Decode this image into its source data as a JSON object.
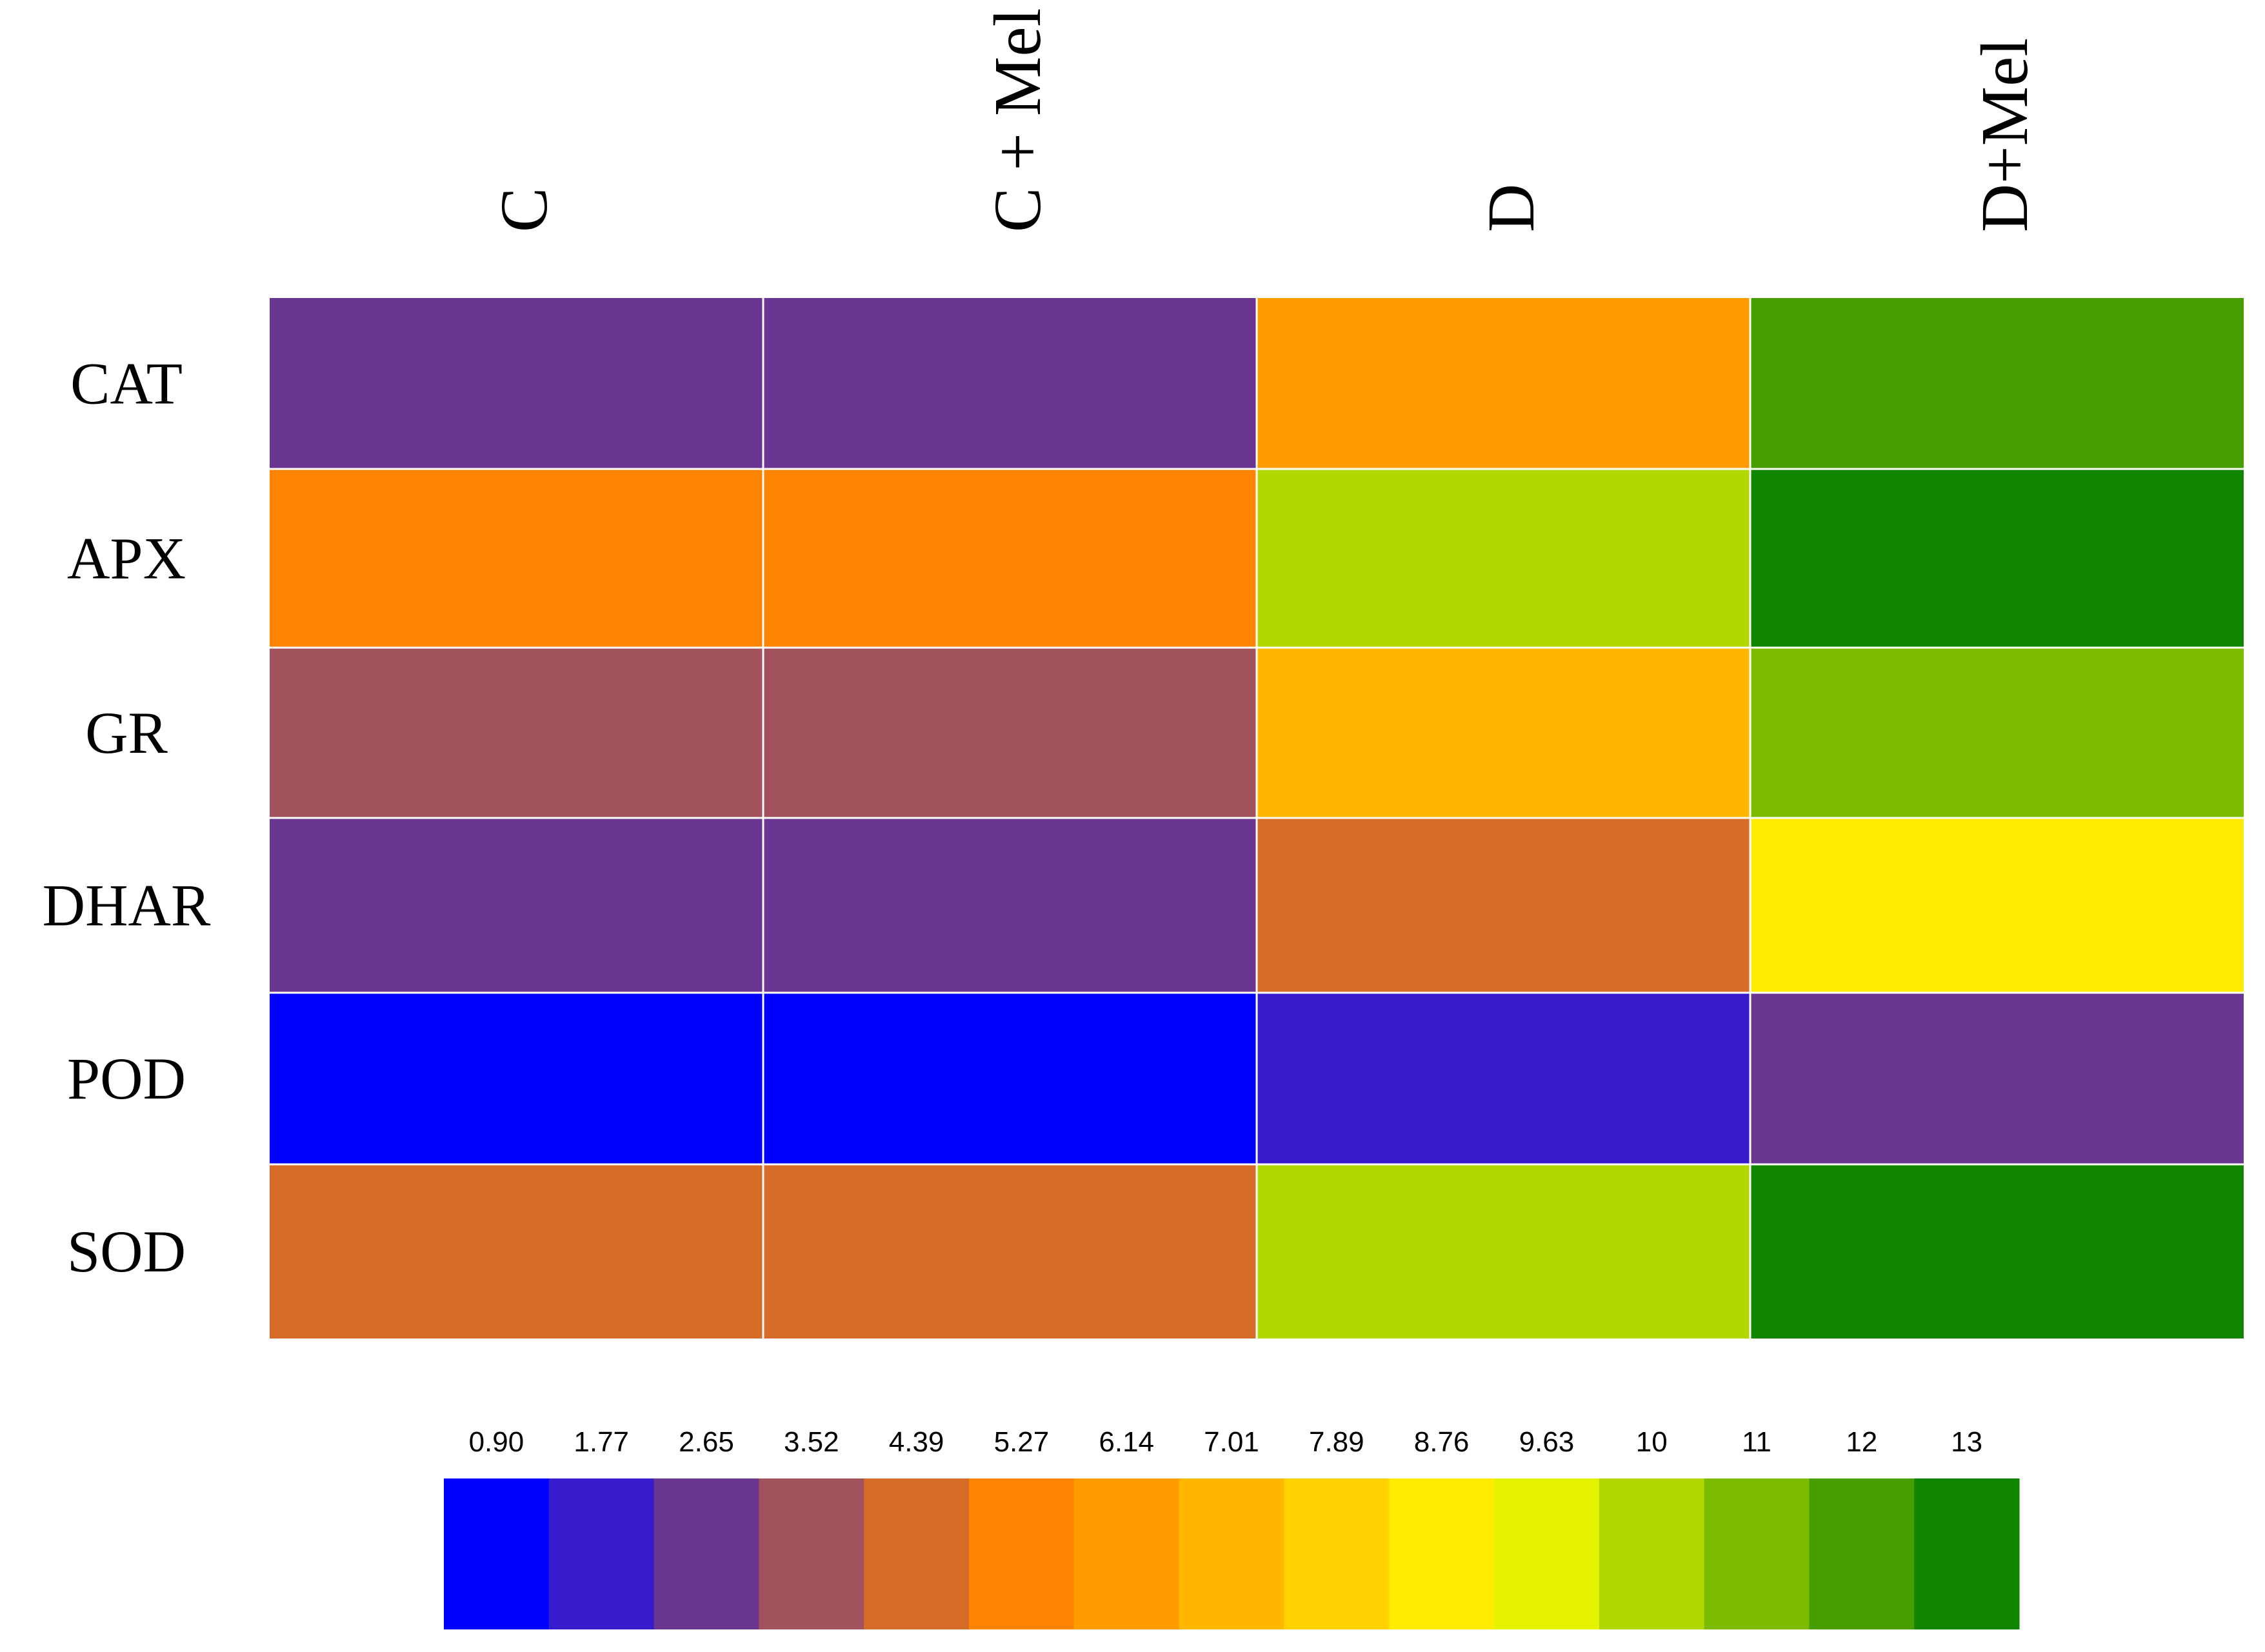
{
  "chart_data": {
    "type": "heatmap",
    "columns": [
      "C",
      "C + Mel",
      "D",
      "D+Mel"
    ],
    "rows": [
      "CAT",
      "APX",
      "GR",
      "DHAR",
      "POD",
      "SOD"
    ],
    "values": [
      [
        2.65,
        2.65,
        6.14,
        12
      ],
      [
        5.27,
        5.27,
        10,
        13
      ],
      [
        3.52,
        3.52,
        7.01,
        11
      ],
      [
        2.65,
        2.65,
        4.39,
        8.76
      ],
      [
        0.9,
        0.9,
        1.77,
        2.65
      ],
      [
        4.39,
        4.39,
        10,
        13
      ]
    ],
    "legend": {
      "ticks": [
        "0.90",
        "1.77",
        "2.65",
        "3.52",
        "4.39",
        "5.27",
        "6.14",
        "7.01",
        "7.89",
        "8.76",
        "9.63",
        "10",
        "11",
        "12",
        "13"
      ],
      "colors": [
        "#0000ff",
        "#361ccc",
        "#6b3592",
        "#a1525c",
        "#d76c28",
        "#ff8402",
        "#ff9c00",
        "#ffb700",
        "#ffd200",
        "#ffec00",
        "#e5f300",
        "#b1d800",
        "#7cbb00",
        "#479e00",
        "#108600"
      ]
    }
  }
}
